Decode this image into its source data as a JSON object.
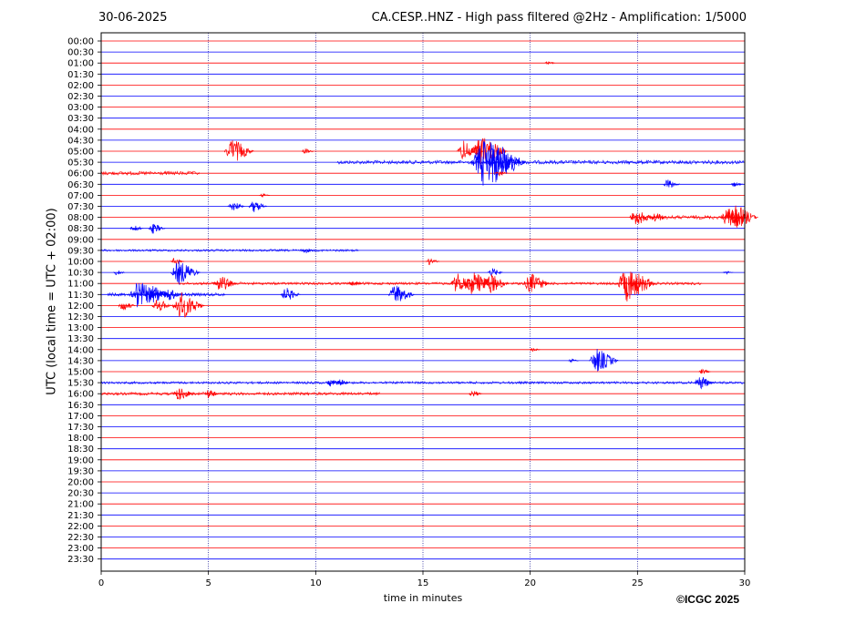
{
  "header": {
    "date": "30-06-2025",
    "title": "CA.CESP..HNZ - High pass filtered @2Hz - Amplification: 1/5000"
  },
  "footer": {
    "copyright": "©ICGC 2025"
  },
  "chart_data": {
    "type": "line",
    "title": "CA.CESP..HNZ - High pass filtered @2Hz - Amplification: 1/5000",
    "xlabel": "time in minutes",
    "ylabel": "UTC (local time = UTC + 02:00)",
    "xlim": [
      0,
      30
    ],
    "x_ticks": [
      0,
      5,
      10,
      15,
      20,
      25,
      30
    ],
    "grid": "vertical dotted lines at 5-minute intervals",
    "colors": {
      "odd_rows": "#ff0000",
      "even_rows": "#0000ff",
      "grid": "#00008b"
    },
    "rows": [
      "00:00",
      "00:30",
      "01:00",
      "01:30",
      "02:00",
      "02:30",
      "03:00",
      "03:30",
      "04:00",
      "04:30",
      "05:00",
      "05:30",
      "06:00",
      "06:30",
      "07:00",
      "07:30",
      "08:00",
      "08:30",
      "09:00",
      "09:30",
      "10:00",
      "10:30",
      "11:00",
      "11:30",
      "12:00",
      "12:30",
      "13:00",
      "13:30",
      "14:00",
      "14:30",
      "15:00",
      "15:30",
      "16:00",
      "16:30",
      "17:00",
      "17:30",
      "18:00",
      "18:30",
      "19:00",
      "19:30",
      "20:00",
      "20:30",
      "21:00",
      "21:30",
      "22:00",
      "22:30",
      "23:00",
      "23:30"
    ],
    "events": [
      {
        "row": "01:00",
        "t": 20.8,
        "amp": 2
      },
      {
        "row": "05:00",
        "t": 6.1,
        "amp": 14
      },
      {
        "row": "05:00",
        "t": 9.5,
        "amp": 3
      },
      {
        "row": "05:00",
        "t": 16.9,
        "amp": 12
      },
      {
        "row": "05:00",
        "t": 17.7,
        "amp": 18
      },
      {
        "row": "05:30",
        "t": 17.9,
        "amp": 30
      },
      {
        "row": "05:30",
        "t": 18.4,
        "amp": 16
      },
      {
        "row": "06:00",
        "t": 18.5,
        "amp": 4
      },
      {
        "row": "06:30",
        "t": 26.4,
        "amp": 6
      },
      {
        "row": "06:30",
        "t": 29.5,
        "amp": 3
      },
      {
        "row": "07:00",
        "t": 7.5,
        "amp": 2
      },
      {
        "row": "07:30",
        "t": 6.1,
        "amp": 6
      },
      {
        "row": "07:30",
        "t": 7.1,
        "amp": 7
      },
      {
        "row": "08:00",
        "t": 24.9,
        "amp": 10
      },
      {
        "row": "08:00",
        "t": 25.8,
        "amp": 6
      },
      {
        "row": "08:00",
        "t": 29.2,
        "amp": 12
      },
      {
        "row": "08:00",
        "t": 29.6,
        "amp": 14
      },
      {
        "row": "08:30",
        "t": 1.5,
        "amp": 4
      },
      {
        "row": "08:30",
        "t": 2.4,
        "amp": 6
      },
      {
        "row": "09:30",
        "t": 9.5,
        "amp": 3
      },
      {
        "row": "10:00",
        "t": 15.3,
        "amp": 4
      },
      {
        "row": "10:00",
        "t": 3.4,
        "amp": 4
      },
      {
        "row": "10:30",
        "t": 0.7,
        "amp": 3
      },
      {
        "row": "10:30",
        "t": 3.6,
        "amp": 14
      },
      {
        "row": "10:30",
        "t": 18.2,
        "amp": 5
      },
      {
        "row": "10:30",
        "t": 29.1,
        "amp": 2
      },
      {
        "row": "11:00",
        "t": 5.5,
        "amp": 10
      },
      {
        "row": "11:00",
        "t": 11.7,
        "amp": 4
      },
      {
        "row": "11:00",
        "t": 16.6,
        "amp": 12
      },
      {
        "row": "11:00",
        "t": 17.3,
        "amp": 14
      },
      {
        "row": "11:00",
        "t": 18.1,
        "amp": 12
      },
      {
        "row": "11:00",
        "t": 20.0,
        "amp": 12
      },
      {
        "row": "11:00",
        "t": 24.5,
        "amp": 20
      },
      {
        "row": "11:00",
        "t": 24.8,
        "amp": 6
      },
      {
        "row": "11:30",
        "t": 1.7,
        "amp": 16
      },
      {
        "row": "11:30",
        "t": 2.4,
        "amp": 10
      },
      {
        "row": "11:30",
        "t": 3.1,
        "amp": 8
      },
      {
        "row": "11:30",
        "t": 8.6,
        "amp": 8
      },
      {
        "row": "11:30",
        "t": 13.7,
        "amp": 12
      },
      {
        "row": "12:00",
        "t": 1.0,
        "amp": 6
      },
      {
        "row": "12:00",
        "t": 2.6,
        "amp": 8
      },
      {
        "row": "12:00",
        "t": 3.7,
        "amp": 16
      },
      {
        "row": "14:00",
        "t": 20.1,
        "amp": 2
      },
      {
        "row": "14:30",
        "t": 21.9,
        "amp": 2
      },
      {
        "row": "14:30",
        "t": 23.1,
        "amp": 14
      },
      {
        "row": "15:00",
        "t": 28.0,
        "amp": 3
      },
      {
        "row": "15:30",
        "t": 10.7,
        "amp": 5
      },
      {
        "row": "15:30",
        "t": 11.1,
        "amp": 4
      },
      {
        "row": "15:30",
        "t": 27.9,
        "amp": 8
      },
      {
        "row": "16:00",
        "t": 3.6,
        "amp": 8
      },
      {
        "row": "16:00",
        "t": 5.0,
        "amp": 5
      },
      {
        "row": "16:00",
        "t": 17.3,
        "amp": 4
      }
    ],
    "noise_segments": [
      {
        "row": "05:30",
        "from": 11.0,
        "to": 30.0,
        "amp": 2
      },
      {
        "row": "06:00",
        "from": 0.0,
        "to": 4.6,
        "amp": 2
      },
      {
        "row": "08:00",
        "from": 24.8,
        "to": 30.0,
        "amp": 2
      },
      {
        "row": "09:30",
        "from": 0.0,
        "to": 12.0,
        "amp": 1.2
      },
      {
        "row": "11:00",
        "from": 3.6,
        "to": 28.0,
        "amp": 1.4
      },
      {
        "row": "11:30",
        "from": 0.3,
        "to": 5.8,
        "amp": 1.8
      },
      {
        "row": "15:30",
        "from": 0.0,
        "to": 30.0,
        "amp": 1.3
      },
      {
        "row": "16:00",
        "from": 0.0,
        "to": 13.0,
        "amp": 1.6
      }
    ]
  }
}
